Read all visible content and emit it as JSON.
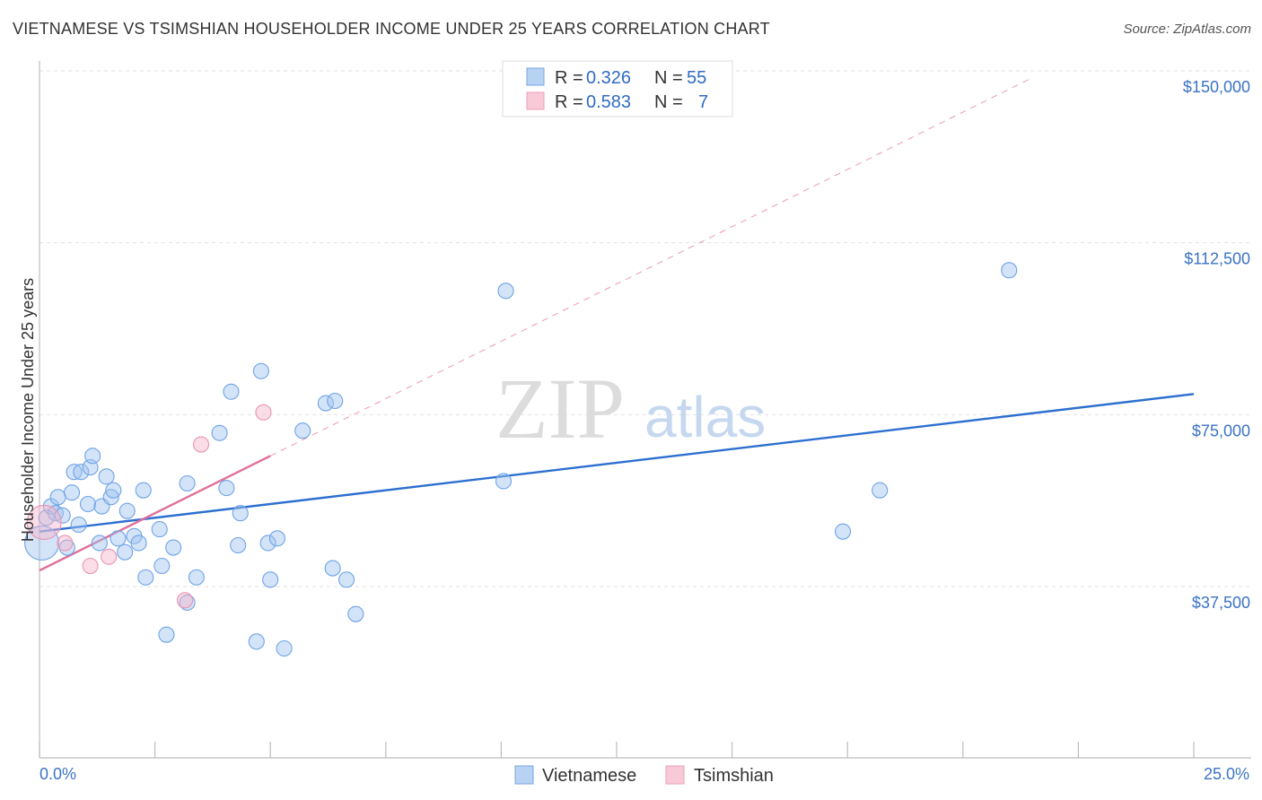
{
  "title": "VIETNAMESE VS TSIMSHIAN HOUSEHOLDER INCOME UNDER 25 YEARS CORRELATION CHART",
  "source": "Source: ZipAtlas.com",
  "watermark": {
    "zip": "ZIP",
    "atlas": "atlas"
  },
  "legend_stats": [
    {
      "r_label": "R =",
      "r": "0.326",
      "n_label": "N =",
      "n": "55",
      "color": "#a9c8f0"
    },
    {
      "r_label": "R =",
      "r": "0.583",
      "n_label": "N =",
      "n": "7",
      "color": "#f6b8cb"
    }
  ],
  "chart_data": {
    "type": "scatter",
    "title": "VIETNAMESE VS TSIMSHIAN HOUSEHOLDER INCOME UNDER 25 YEARS CORRELATION CHART",
    "xlabel": "",
    "ylabel": "Householder Income Under 25 years",
    "xlim": [
      0,
      25
    ],
    "ylim": [
      0,
      155000
    ],
    "x_tick_labels": [
      "0.0%",
      "25.0%"
    ],
    "y_ticks": [
      37500,
      75000,
      112500,
      150000
    ],
    "y_tick_labels": [
      "$37,500",
      "$75,000",
      "$112,500",
      "$150,000"
    ],
    "grid": true,
    "legend_position": "bottom-center",
    "series": [
      {
        "name": "Vietnamese",
        "color": "#6fa3e6",
        "trend": {
          "x": [
            0,
            25
          ],
          "y": [
            49500,
            79500
          ],
          "style": "solid",
          "color": "#2c6fd1"
        },
        "points": [
          {
            "x": 0.05,
            "y": 47000,
            "big": true
          },
          {
            "x": 0.15,
            "y": 52500
          },
          {
            "x": 0.25,
            "y": 55000
          },
          {
            "x": 0.35,
            "y": 53500
          },
          {
            "x": 0.4,
            "y": 57000
          },
          {
            "x": 0.5,
            "y": 53000
          },
          {
            "x": 0.6,
            "y": 46000
          },
          {
            "x": 0.7,
            "y": 58000
          },
          {
            "x": 0.75,
            "y": 62500
          },
          {
            "x": 0.85,
            "y": 51000
          },
          {
            "x": 0.9,
            "y": 62500
          },
          {
            "x": 1.05,
            "y": 55500
          },
          {
            "x": 1.1,
            "y": 63500
          },
          {
            "x": 1.15,
            "y": 66000
          },
          {
            "x": 1.3,
            "y": 47000
          },
          {
            "x": 1.35,
            "y": 55000
          },
          {
            "x": 1.45,
            "y": 61500
          },
          {
            "x": 1.55,
            "y": 57000
          },
          {
            "x": 1.6,
            "y": 58500
          },
          {
            "x": 1.7,
            "y": 48000
          },
          {
            "x": 1.85,
            "y": 45000
          },
          {
            "x": 1.9,
            "y": 54000
          },
          {
            "x": 2.05,
            "y": 48500
          },
          {
            "x": 2.15,
            "y": 47000
          },
          {
            "x": 2.25,
            "y": 58500
          },
          {
            "x": 2.3,
            "y": 39500
          },
          {
            "x": 2.6,
            "y": 50000
          },
          {
            "x": 2.65,
            "y": 42000
          },
          {
            "x": 2.75,
            "y": 27000
          },
          {
            "x": 2.9,
            "y": 46000
          },
          {
            "x": 3.2,
            "y": 60000
          },
          {
            "x": 3.4,
            "y": 39500
          },
          {
            "x": 3.9,
            "y": 71000
          },
          {
            "x": 4.05,
            "y": 59000
          },
          {
            "x": 4.15,
            "y": 80000
          },
          {
            "x": 4.3,
            "y": 46500
          },
          {
            "x": 4.35,
            "y": 53500
          },
          {
            "x": 4.7,
            "y": 25500
          },
          {
            "x": 4.8,
            "y": 84500
          },
          {
            "x": 4.95,
            "y": 47000
          },
          {
            "x": 5.0,
            "y": 39000
          },
          {
            "x": 5.15,
            "y": 48000
          },
          {
            "x": 5.3,
            "y": 24000
          },
          {
            "x": 5.7,
            "y": 71500
          },
          {
            "x": 6.2,
            "y": 77500
          },
          {
            "x": 6.4,
            "y": 78000
          },
          {
            "x": 6.35,
            "y": 41500
          },
          {
            "x": 6.65,
            "y": 39000
          },
          {
            "x": 6.85,
            "y": 31500
          },
          {
            "x": 10.05,
            "y": 60500
          },
          {
            "x": 10.1,
            "y": 102000
          },
          {
            "x": 17.4,
            "y": 49500
          },
          {
            "x": 18.2,
            "y": 58500
          },
          {
            "x": 21.0,
            "y": 106500
          },
          {
            "x": 3.2,
            "y": 34000
          }
        ]
      },
      {
        "name": "Tsimshian",
        "color": "#f3a7bf",
        "trend": {
          "x": [
            0,
            5
          ],
          "y": [
            41000,
            66000
          ],
          "style": "solid",
          "color": "#e0709a",
          "extended": {
            "x": [
              5,
              21.5
            ],
            "y": [
              66000,
              148500
            ],
            "style": "dashed"
          }
        },
        "points": [
          {
            "x": 0.1,
            "y": 51500,
            "big": true
          },
          {
            "x": 0.55,
            "y": 47000
          },
          {
            "x": 1.1,
            "y": 42000
          },
          {
            "x": 1.5,
            "y": 44000
          },
          {
            "x": 3.15,
            "y": 34500
          },
          {
            "x": 3.5,
            "y": 68500
          },
          {
            "x": 4.85,
            "y": 75500
          }
        ]
      }
    ]
  }
}
